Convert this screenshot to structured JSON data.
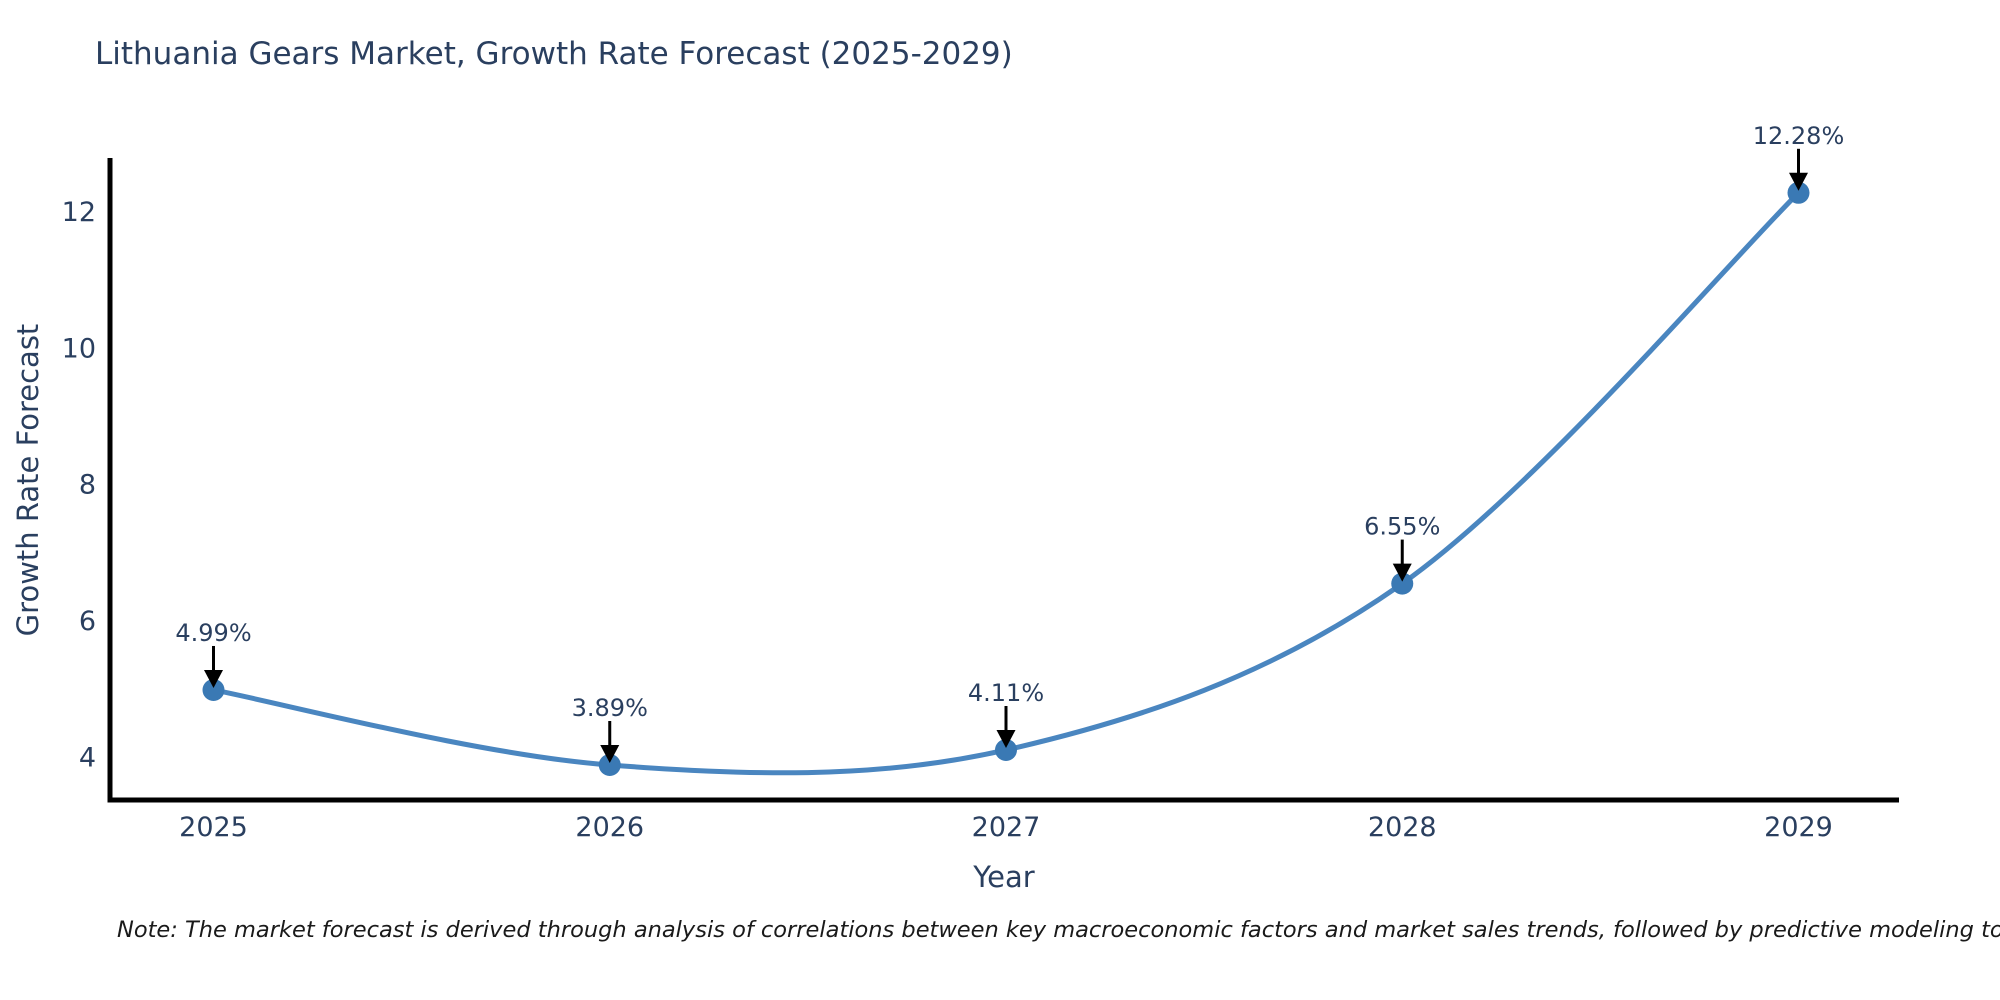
{
  "chart_data": {
    "type": "line",
    "title": "Lithuania Gears Market, Growth Rate Forecast (2025-2029)",
    "xlabel": "Year",
    "ylabel": "Growth Rate Forecast",
    "x": [
      "2025",
      "2026",
      "2027",
      "2028",
      "2029"
    ],
    "series": [
      {
        "name": "Growth Rate Forecast",
        "values": [
          4.99,
          3.89,
          4.11,
          6.55,
          12.28
        ]
      }
    ],
    "point_labels": [
      "4.99%",
      "3.89%",
      "4.11%",
      "6.55%",
      "12.28%"
    ],
    "yticks": [
      "4",
      "6",
      "8",
      "10",
      "12"
    ],
    "ylim": [
      3.37,
      12.78
    ],
    "grid": false,
    "legend": false,
    "line_shape": "spline",
    "colors": {
      "line": "#4a86c0",
      "marker": "#3a79b4",
      "text": "#2a3f5f",
      "axis": "#000000",
      "arrow": "#000000",
      "note": "#1a1a1a",
      "background": "#ffffff"
    },
    "note": "Note: The market forecast is derived through analysis of correlations between key macroeconomic factors and market sales trends, followed by predictive modeling to project future sales."
  }
}
